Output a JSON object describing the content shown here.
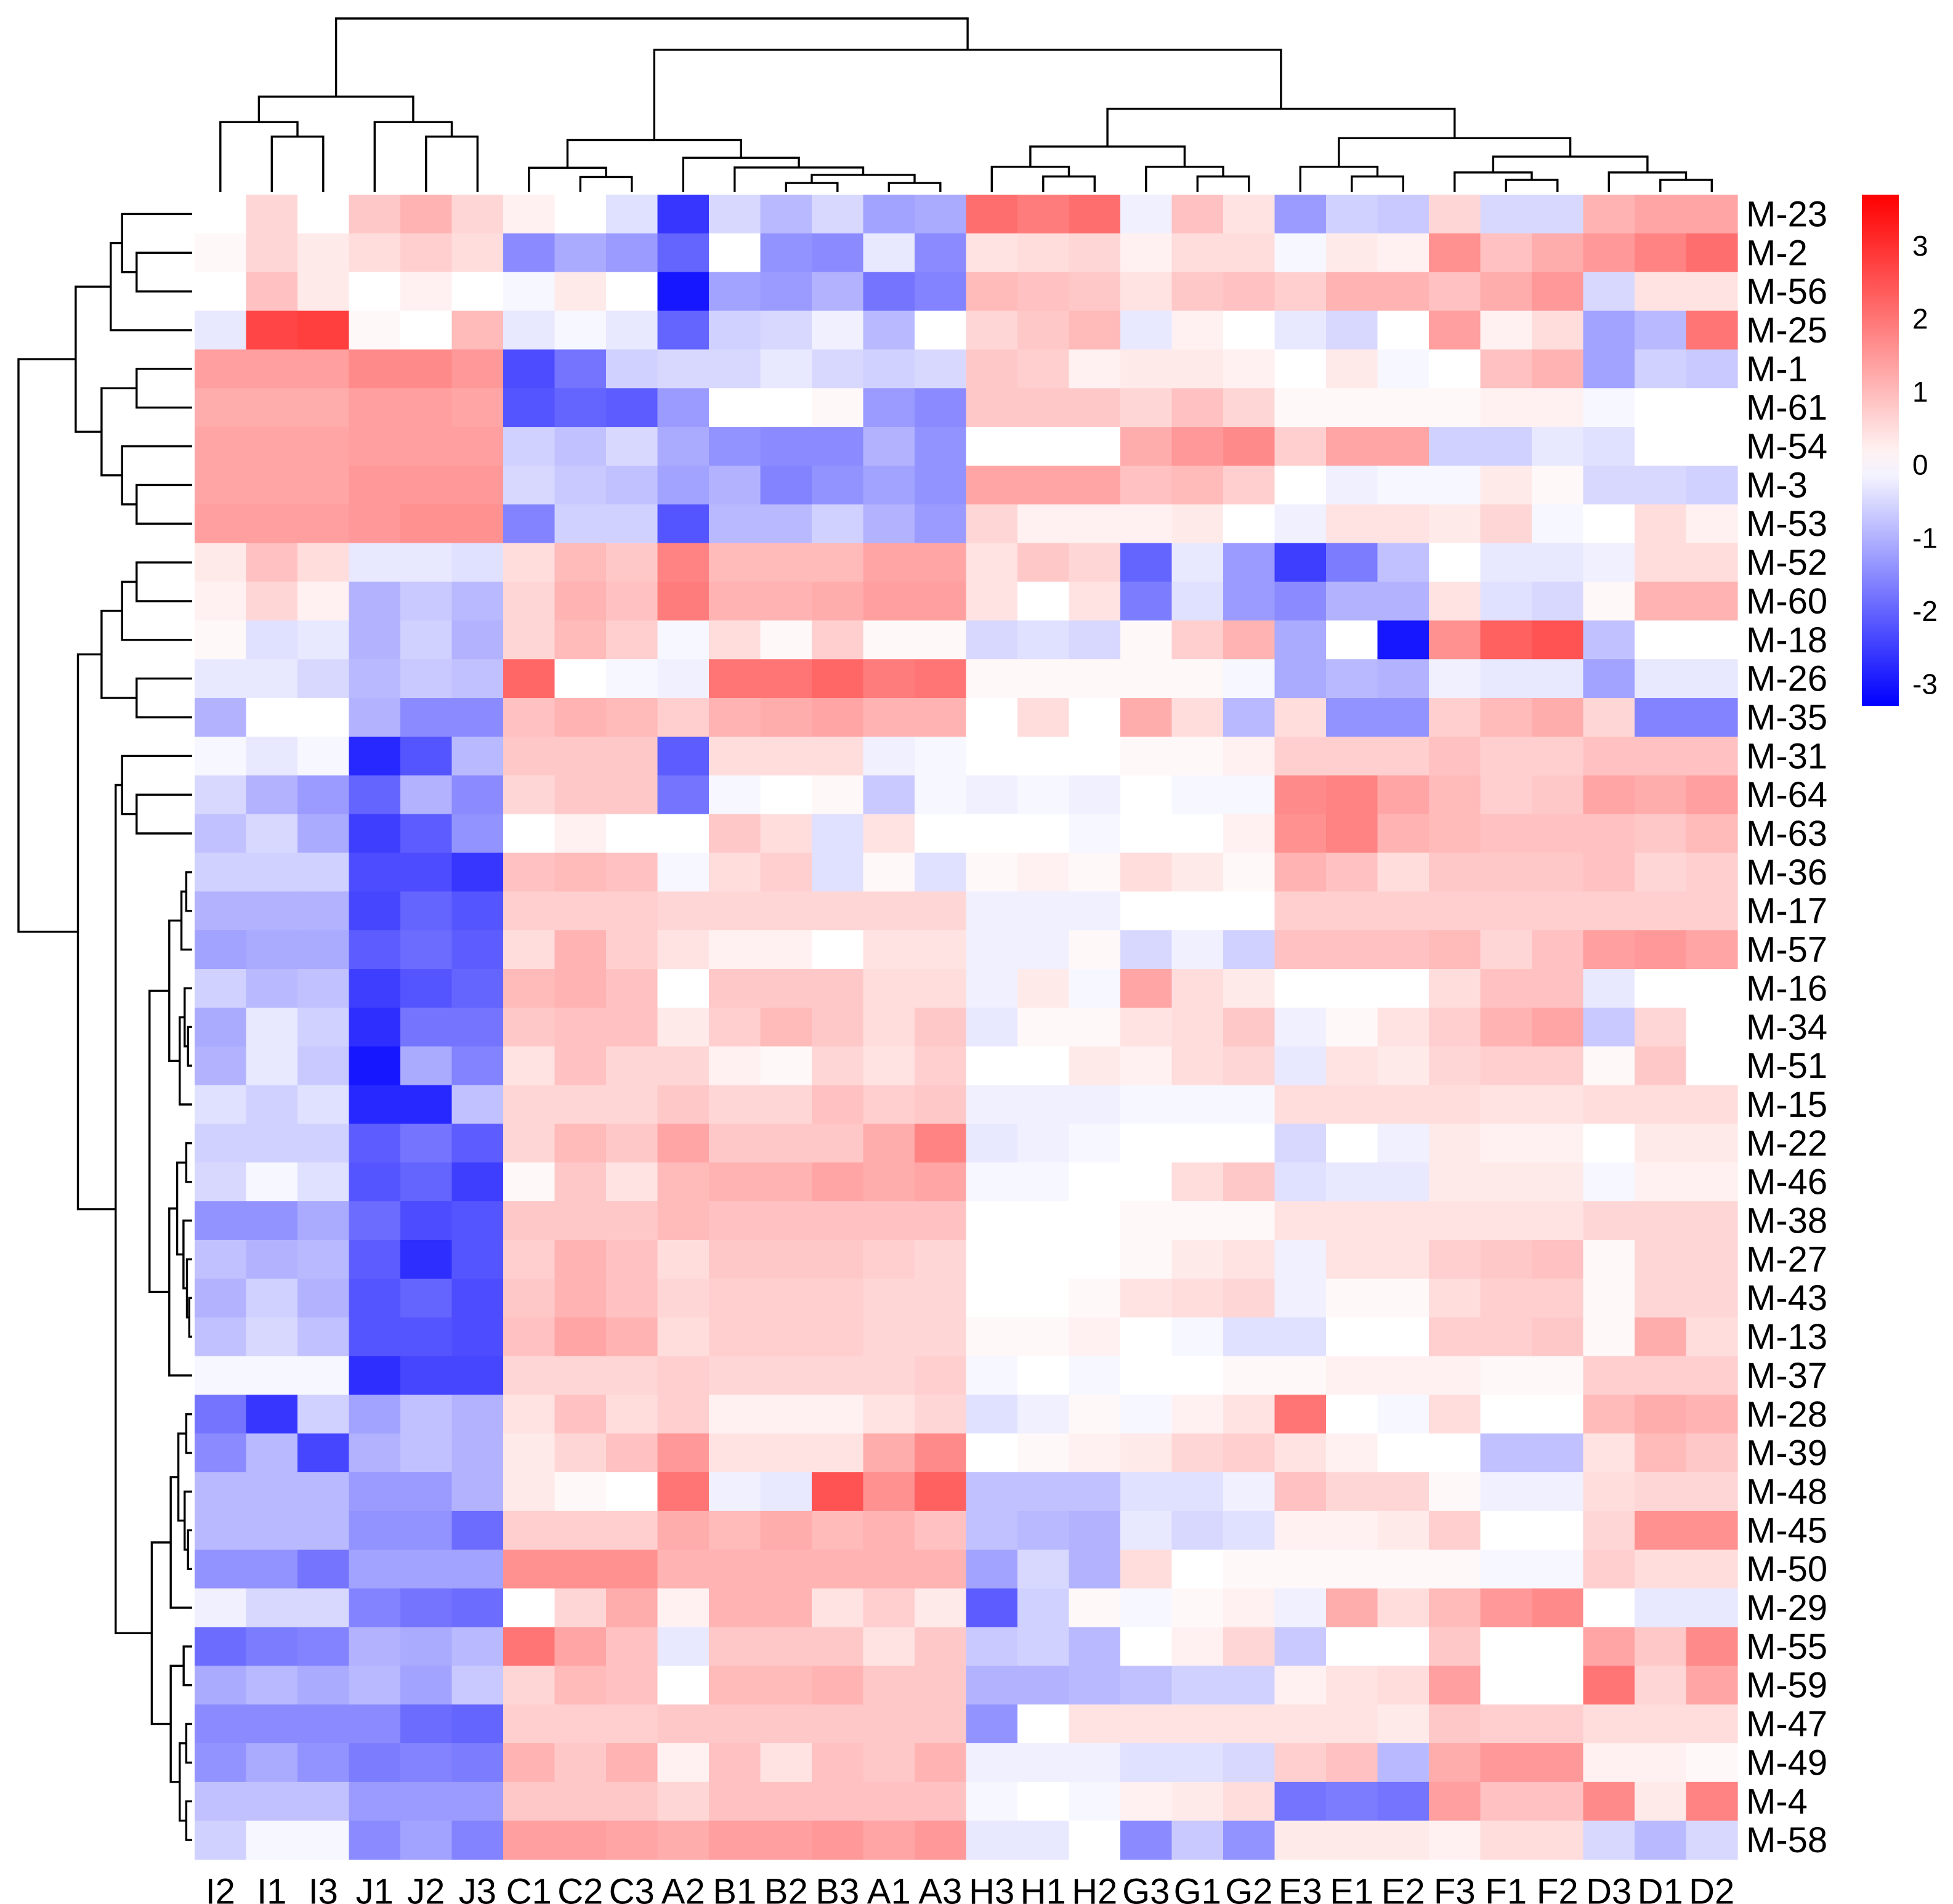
{
  "chart_data": {
    "type": "heatmap",
    "title": "",
    "columns": [
      "I2",
      "I1",
      "I3",
      "J1",
      "J2",
      "J3",
      "C1",
      "C2",
      "C3",
      "A2",
      "B1",
      "B2",
      "B3",
      "A1",
      "A3",
      "H3",
      "H1",
      "H2",
      "G3",
      "G1",
      "G2",
      "E3",
      "E1",
      "E2",
      "F3",
      "F1",
      "F2",
      "D3",
      "D1",
      "D2"
    ],
    "rows": [
      "M-23",
      "M-2",
      "M-56",
      "M-25",
      "M-1",
      "M-61",
      "M-54",
      "M-3",
      "M-53",
      "M-52",
      "M-60",
      "M-18",
      "M-26",
      "M-35",
      "M-31",
      "M-64",
      "M-63",
      "M-36",
      "M-17",
      "M-57",
      "M-16",
      "M-34",
      "M-51",
      "M-15",
      "M-22",
      "M-46",
      "M-38",
      "M-27",
      "M-43",
      "M-13",
      "M-37",
      "M-28",
      "M-39",
      "M-48",
      "M-45",
      "M-50",
      "M-29",
      "M-55",
      "M-59",
      "M-47",
      "M-49",
      "M-4",
      "M-58"
    ],
    "values": [
      [
        0.0,
        0.6,
        0.0,
        0.8,
        1.1,
        0.6,
        0.2,
        0.0,
        -0.4,
        -2.6,
        -0.5,
        -0.9,
        -0.5,
        -1.2,
        -1.1,
        2.1,
        1.9,
        2.1,
        -0.2,
        0.9,
        0.4,
        -1.3,
        -0.6,
        -0.7,
        0.6,
        -0.5,
        -0.5,
        1.1,
        1.3,
        1.3
      ],
      [
        0.1,
        0.6,
        0.3,
        0.5,
        0.7,
        0.5,
        -1.5,
        -1.1,
        -1.3,
        -2.0,
        0.0,
        -1.4,
        -1.5,
        -0.3,
        -1.5,
        0.4,
        0.5,
        0.6,
        0.2,
        0.5,
        0.5,
        -0.1,
        0.3,
        0.2,
        1.6,
        0.9,
        1.2,
        1.5,
        1.8,
        2.1
      ],
      [
        0.0,
        0.9,
        0.3,
        0.0,
        0.2,
        0.0,
        -0.1,
        0.3,
        0.0,
        -3.0,
        -1.2,
        -1.3,
        -1.0,
        -1.8,
        -1.6,
        1.0,
        0.9,
        0.8,
        0.4,
        0.8,
        0.9,
        0.7,
        1.1,
        1.1,
        0.9,
        1.2,
        1.5,
        -0.5,
        0.4,
        0.4
      ],
      [
        -0.3,
        2.7,
        2.8,
        0.1,
        0.0,
        1.0,
        -0.3,
        -0.1,
        -0.3,
        -2.0,
        -0.6,
        -0.5,
        -0.2,
        -0.9,
        0.0,
        0.6,
        0.8,
        1.0,
        -0.3,
        0.2,
        0.0,
        -0.3,
        -0.5,
        0.0,
        1.4,
        0.2,
        0.5,
        -1.2,
        -0.9,
        2.0
      ],
      [
        1.4,
        1.4,
        1.4,
        1.7,
        1.7,
        1.5,
        -2.3,
        -1.8,
        -0.6,
        -0.5,
        -0.5,
        -0.3,
        -0.5,
        -0.6,
        -0.5,
        0.8,
        0.7,
        0.2,
        0.3,
        0.3,
        0.2,
        0.0,
        0.3,
        -0.1,
        0.0,
        0.9,
        1.1,
        -1.2,
        -0.6,
        -0.7
      ],
      [
        1.2,
        1.2,
        1.2,
        1.4,
        1.4,
        1.3,
        -2.2,
        -2.0,
        -2.1,
        -1.3,
        0.0,
        0.0,
        0.1,
        -1.3,
        -1.5,
        0.8,
        0.8,
        0.8,
        0.6,
        0.9,
        0.6,
        0.1,
        0.1,
        0.1,
        0.1,
        0.2,
        0.2,
        -0.1,
        0.0,
        0.0
      ],
      [
        1.3,
        1.3,
        1.3,
        1.4,
        1.4,
        1.4,
        -0.6,
        -0.8,
        -0.5,
        -1.1,
        -1.4,
        -1.5,
        -1.5,
        -1.0,
        -1.4,
        0.0,
        0.0,
        0.0,
        1.2,
        1.5,
        1.7,
        0.7,
        1.3,
        1.3,
        -0.6,
        -0.6,
        -0.3,
        -0.4,
        0.0,
        0.0
      ],
      [
        1.3,
        1.3,
        1.3,
        1.5,
        1.5,
        1.5,
        -0.5,
        -0.7,
        -0.8,
        -1.2,
        -1.0,
        -1.6,
        -1.4,
        -1.2,
        -1.4,
        1.3,
        1.3,
        1.3,
        0.9,
        1.0,
        0.7,
        0.0,
        -0.2,
        -0.1,
        -0.1,
        0.3,
        0.1,
        -0.5,
        -0.5,
        -0.6
      ],
      [
        1.4,
        1.4,
        1.4,
        1.5,
        1.6,
        1.6,
        -1.6,
        -0.6,
        -0.6,
        -2.2,
        -0.9,
        -0.9,
        -0.6,
        -1.0,
        -1.3,
        0.6,
        0.2,
        0.2,
        0.2,
        0.3,
        0.0,
        -0.2,
        0.4,
        0.4,
        0.3,
        0.6,
        -0.1,
        0.0,
        0.5,
        0.2
      ],
      [
        0.3,
        0.9,
        0.5,
        -0.3,
        -0.3,
        -0.4,
        0.5,
        1.0,
        0.8,
        1.8,
        1.0,
        1.0,
        1.0,
        1.3,
        1.3,
        0.4,
        0.8,
        0.6,
        -2.0,
        -0.3,
        -1.3,
        -2.5,
        -1.7,
        -0.8,
        0.0,
        -0.3,
        -0.3,
        -0.2,
        0.5,
        0.5
      ],
      [
        0.2,
        0.6,
        0.2,
        -1.0,
        -0.7,
        -0.9,
        0.6,
        1.1,
        0.9,
        1.9,
        1.1,
        1.1,
        1.2,
        1.4,
        1.4,
        0.4,
        0.0,
        0.4,
        -1.7,
        -0.4,
        -1.3,
        -1.5,
        -1.0,
        -1.0,
        0.4,
        -0.4,
        -0.5,
        0.1,
        1.1,
        1.1
      ],
      [
        0.1,
        -0.4,
        -0.3,
        -1.0,
        -0.6,
        -1.0,
        0.6,
        1.0,
        0.7,
        -0.1,
        0.5,
        0.1,
        0.7,
        0.1,
        0.1,
        -0.5,
        -0.4,
        -0.5,
        0.1,
        0.7,
        1.1,
        -1.1,
        0.0,
        -3.0,
        1.6,
        2.3,
        2.5,
        -0.8,
        0.0,
        0.0
      ],
      [
        -0.3,
        -0.3,
        -0.5,
        -0.9,
        -0.7,
        -0.8,
        2.2,
        0.0,
        -0.1,
        -0.2,
        2.0,
        2.0,
        2.2,
        1.9,
        2.0,
        0.1,
        0.1,
        0.1,
        0.1,
        0.1,
        -0.1,
        -1.1,
        -0.9,
        -1.0,
        -0.2,
        -0.3,
        -0.3,
        -1.2,
        -0.3,
        -0.3
      ],
      [
        -1.0,
        0.0,
        0.0,
        -1.0,
        -1.5,
        -1.5,
        0.9,
        1.1,
        1.0,
        0.7,
        1.1,
        1.2,
        1.3,
        1.1,
        1.1,
        0.0,
        0.5,
        0.0,
        1.2,
        0.5,
        -0.9,
        0.5,
        -1.4,
        -1.4,
        0.7,
        1.0,
        1.2,
        0.6,
        -1.6,
        -1.6
      ],
      [
        -0.1,
        -0.3,
        -0.1,
        -2.8,
        -2.2,
        -0.9,
        0.8,
        0.8,
        0.8,
        -2.1,
        0.5,
        0.5,
        0.5,
        -0.2,
        -0.1,
        0.0,
        0.0,
        0.0,
        0.1,
        0.1,
        0.2,
        0.7,
        0.7,
        0.7,
        0.9,
        0.7,
        0.7,
        0.9,
        0.9,
        0.9
      ],
      [
        -0.5,
        -1.0,
        -1.3,
        -2.0,
        -1.0,
        -1.5,
        0.6,
        0.8,
        0.8,
        -1.8,
        -0.1,
        0.0,
        0.1,
        -0.7,
        -0.1,
        -0.2,
        -0.1,
        -0.2,
        0.0,
        -0.1,
        -0.1,
        1.7,
        1.8,
        1.3,
        1.0,
        0.7,
        0.8,
        1.3,
        1.2,
        1.4
      ],
      [
        -0.8,
        -0.5,
        -1.1,
        -2.5,
        -2.1,
        -1.4,
        0.0,
        0.2,
        0.0,
        0.0,
        0.8,
        0.5,
        -0.4,
        0.4,
        0.0,
        0.0,
        0.0,
        -0.1,
        0.0,
        0.0,
        0.2,
        1.6,
        1.8,
        1.1,
        1.0,
        0.9,
        0.9,
        0.9,
        0.8,
        1.0
      ],
      [
        -0.6,
        -0.6,
        -0.6,
        -2.3,
        -2.3,
        -2.6,
        0.9,
        1.0,
        0.9,
        -0.1,
        0.5,
        0.7,
        -0.4,
        0.1,
        -0.4,
        0.1,
        0.2,
        0.1,
        0.5,
        0.3,
        0.1,
        1.1,
        0.9,
        0.5,
        0.8,
        0.8,
        0.8,
        0.9,
        0.6,
        0.7
      ],
      [
        -1.0,
        -1.0,
        -1.0,
        -2.4,
        -2.0,
        -2.2,
        0.7,
        0.7,
        0.7,
        0.6,
        0.6,
        0.6,
        0.6,
        0.6,
        0.6,
        -0.2,
        -0.2,
        -0.2,
        0.0,
        0.0,
        0.0,
        0.7,
        0.7,
        0.7,
        0.7,
        0.7,
        0.7,
        0.7,
        0.7,
        0.7
      ],
      [
        -1.2,
        -1.1,
        -1.1,
        -2.1,
        -1.9,
        -2.1,
        0.5,
        1.1,
        0.7,
        0.4,
        0.2,
        0.2,
        0.0,
        0.4,
        0.4,
        -0.2,
        -0.2,
        0.1,
        -0.5,
        -0.2,
        -0.6,
        0.9,
        0.9,
        0.9,
        1.0,
        0.6,
        0.9,
        1.4,
        1.5,
        1.3
      ],
      [
        -0.6,
        -0.9,
        -0.8,
        -2.5,
        -2.2,
        -2.0,
        1.0,
        1.1,
        0.9,
        0.0,
        0.8,
        0.8,
        0.8,
        0.5,
        0.5,
        -0.2,
        0.3,
        -0.1,
        1.3,
        0.5,
        0.3,
        0.0,
        0.0,
        0.0,
        0.5,
        0.9,
        0.9,
        -0.3,
        0.0,
        0.0
      ],
      [
        -1.1,
        -0.3,
        -0.6,
        -2.7,
        -1.8,
        -1.8,
        0.8,
        0.9,
        0.9,
        0.3,
        0.7,
        1.0,
        0.8,
        0.5,
        0.8,
        -0.3,
        0.1,
        0.1,
        0.4,
        0.5,
        0.8,
        -0.2,
        0.1,
        0.4,
        0.7,
        1.1,
        1.3,
        -0.7,
        0.6,
        0.0
      ],
      [
        -1.0,
        -0.3,
        -0.7,
        -3.0,
        -1.1,
        -1.6,
        0.4,
        0.9,
        0.6,
        0.6,
        0.2,
        0.1,
        0.6,
        0.4,
        0.7,
        0.0,
        0.0,
        0.3,
        0.2,
        0.5,
        0.6,
        -0.3,
        0.4,
        0.3,
        0.6,
        0.7,
        0.7,
        0.1,
        0.8,
        0.0
      ],
      [
        -0.4,
        -0.6,
        -0.4,
        -2.8,
        -2.8,
        -0.8,
        0.6,
        0.6,
        0.6,
        0.8,
        0.6,
        0.6,
        0.9,
        0.7,
        0.8,
        -0.2,
        -0.2,
        -0.2,
        -0.1,
        -0.1,
        -0.1,
        0.5,
        0.5,
        0.5,
        0.5,
        0.4,
        0.4,
        0.5,
        0.5,
        0.5
      ],
      [
        -0.6,
        -0.6,
        -0.6,
        -2.1,
        -1.8,
        -2.1,
        0.6,
        1.0,
        0.8,
        1.3,
        0.8,
        0.8,
        0.8,
        1.2,
        1.8,
        -0.3,
        -0.2,
        -0.1,
        0.0,
        0.0,
        0.0,
        -0.5,
        0.0,
        -0.2,
        0.3,
        0.2,
        0.2,
        0.0,
        0.3,
        0.3
      ],
      [
        -0.5,
        -0.1,
        -0.4,
        -2.2,
        -2.0,
        -2.5,
        0.1,
        0.8,
        0.4,
        1.0,
        1.1,
        1.1,
        1.3,
        1.2,
        1.3,
        -0.1,
        -0.1,
        0.0,
        0.0,
        0.5,
        0.8,
        -0.4,
        -0.3,
        -0.3,
        0.3,
        0.3,
        0.3,
        -0.1,
        0.2,
        0.2
      ],
      [
        -1.4,
        -1.4,
        -1.1,
        -1.9,
        -2.3,
        -2.2,
        0.8,
        0.8,
        0.8,
        1.0,
        0.9,
        0.9,
        0.9,
        0.9,
        0.9,
        0.0,
        0.0,
        0.0,
        0.1,
        0.1,
        0.1,
        0.4,
        0.4,
        0.4,
        0.4,
        0.4,
        0.4,
        0.6,
        0.6,
        0.6
      ],
      [
        -0.8,
        -1.0,
        -0.9,
        -2.1,
        -2.7,
        -2.2,
        0.7,
        1.1,
        0.9,
        0.5,
        0.8,
        0.8,
        0.8,
        0.7,
        0.6,
        0.0,
        0.0,
        0.0,
        0.1,
        0.3,
        0.4,
        -0.2,
        0.4,
        0.4,
        0.7,
        0.8,
        0.9,
        0.1,
        0.6,
        0.6
      ],
      [
        -1.0,
        -0.6,
        -1.0,
        -2.2,
        -2.0,
        -2.3,
        0.8,
        1.1,
        0.9,
        0.6,
        0.7,
        0.7,
        0.7,
        0.6,
        0.6,
        0.0,
        0.0,
        0.1,
        0.4,
        0.5,
        0.6,
        -0.2,
        0.1,
        0.1,
        0.5,
        0.7,
        0.7,
        0.1,
        0.6,
        0.6
      ],
      [
        -0.8,
        -0.5,
        -0.8,
        -2.2,
        -2.2,
        -2.3,
        0.9,
        1.3,
        1.1,
        0.5,
        0.7,
        0.7,
        0.7,
        0.6,
        0.6,
        0.1,
        0.1,
        0.2,
        0.0,
        -0.1,
        -0.4,
        -0.4,
        0.0,
        0.0,
        0.7,
        0.7,
        0.8,
        0.1,
        1.2,
        0.5
      ],
      [
        -0.1,
        -0.1,
        -0.1,
        -2.7,
        -2.4,
        -2.4,
        0.6,
        0.6,
        0.6,
        0.7,
        0.6,
        0.6,
        0.6,
        0.6,
        0.7,
        -0.1,
        0.0,
        -0.1,
        0.0,
        0.0,
        0.1,
        0.1,
        0.2,
        0.2,
        0.2,
        0.1,
        0.1,
        0.7,
        0.7,
        0.7
      ],
      [
        -1.8,
        -2.6,
        -0.6,
        -1.2,
        -0.8,
        -1.0,
        0.4,
        0.9,
        0.5,
        0.7,
        0.2,
        0.2,
        0.2,
        0.4,
        0.6,
        -0.4,
        -0.2,
        0.1,
        -0.1,
        0.2,
        0.4,
        2.0,
        0.0,
        -0.1,
        0.5,
        0.0,
        0.0,
        1.0,
        1.2,
        1.1
      ],
      [
        -1.5,
        -0.9,
        -2.4,
        -1.0,
        -0.8,
        -1.0,
        0.3,
        0.6,
        0.9,
        1.5,
        0.4,
        0.4,
        0.4,
        1.2,
        1.7,
        0.0,
        0.1,
        0.2,
        0.3,
        0.6,
        0.7,
        0.4,
        0.2,
        0.0,
        0.0,
        -0.8,
        -0.8,
        0.4,
        1.0,
        0.8
      ],
      [
        -0.9,
        -0.9,
        -0.9,
        -1.3,
        -1.3,
        -1.0,
        0.3,
        0.1,
        0.0,
        2.0,
        -0.2,
        -0.3,
        2.5,
        1.6,
        2.3,
        -0.8,
        -0.8,
        -0.8,
        -0.4,
        -0.4,
        -0.2,
        0.9,
        0.6,
        0.6,
        0.1,
        -0.2,
        -0.2,
        0.5,
        0.6,
        0.6
      ],
      [
        -0.9,
        -0.9,
        -0.9,
        -1.4,
        -1.4,
        -1.9,
        0.7,
        0.7,
        0.7,
        1.2,
        1.0,
        1.2,
        1.0,
        1.1,
        0.9,
        -0.8,
        -0.9,
        -1.0,
        -0.3,
        -0.5,
        -0.4,
        0.2,
        0.2,
        0.3,
        0.7,
        0.0,
        0.0,
        0.6,
        1.6,
        1.6
      ],
      [
        -1.4,
        -1.4,
        -1.8,
        -1.2,
        -1.2,
        -1.2,
        1.6,
        1.6,
        1.6,
        1.1,
        1.1,
        1.1,
        1.1,
        1.1,
        1.1,
        -1.2,
        -0.5,
        -1.0,
        0.5,
        0.0,
        0.1,
        0.1,
        0.1,
        0.1,
        0.1,
        -0.1,
        -0.1,
        0.7,
        0.5,
        0.5
      ],
      [
        -0.2,
        -0.5,
        -0.5,
        -1.6,
        -1.8,
        -1.9,
        0.0,
        0.6,
        1.2,
        0.2,
        1.1,
        1.1,
        0.4,
        0.7,
        0.3,
        -2.1,
        -0.6,
        0.1,
        -0.1,
        0.1,
        0.2,
        -0.2,
        1.2,
        0.5,
        1.0,
        1.5,
        1.7,
        0.0,
        -0.3,
        -0.3
      ],
      [
        -1.9,
        -1.7,
        -1.6,
        -1.0,
        -1.1,
        -0.9,
        2.0,
        1.3,
        0.9,
        -0.3,
        0.8,
        0.8,
        0.8,
        0.4,
        0.8,
        -0.7,
        -0.6,
        -0.9,
        0.0,
        0.2,
        0.6,
        -0.7,
        0.0,
        0.0,
        0.8,
        0.0,
        0.0,
        1.3,
        0.8,
        1.7
      ],
      [
        -1.1,
        -0.9,
        -1.1,
        -0.9,
        -1.2,
        -0.7,
        0.6,
        1.0,
        0.9,
        0.0,
        1.0,
        1.0,
        1.1,
        0.8,
        0.8,
        -1.0,
        -1.0,
        -0.9,
        -0.8,
        -0.6,
        -0.6,
        0.2,
        0.4,
        0.5,
        1.4,
        0.0,
        0.0,
        2.0,
        0.6,
        1.3
      ],
      [
        -1.5,
        -1.5,
        -1.5,
        -1.5,
        -1.9,
        -2.0,
        0.7,
        0.7,
        0.7,
        0.8,
        0.8,
        0.8,
        0.8,
        0.8,
        0.8,
        -1.4,
        0.0,
        0.4,
        0.4,
        0.4,
        0.4,
        0.4,
        0.4,
        0.3,
        0.8,
        0.7,
        0.7,
        0.5,
        0.5,
        0.5
      ],
      [
        -1.4,
        -1.1,
        -1.4,
        -1.7,
        -1.6,
        -1.7,
        1.1,
        0.8,
        1.1,
        0.2,
        0.9,
        0.4,
        0.9,
        0.8,
        1.1,
        -0.2,
        -0.2,
        -0.2,
        -0.4,
        -0.4,
        -0.5,
        0.7,
        0.9,
        -0.9,
        1.2,
        1.5,
        1.5,
        0.2,
        0.2,
        0.1
      ],
      [
        -0.8,
        -0.8,
        -0.8,
        -1.3,
        -1.3,
        -1.3,
        0.8,
        0.8,
        0.8,
        0.6,
        0.9,
        0.9,
        0.9,
        0.9,
        0.9,
        -0.1,
        0.0,
        -0.1,
        0.2,
        0.3,
        0.5,
        -1.8,
        -1.7,
        -1.8,
        1.4,
        0.9,
        0.9,
        1.7,
        0.3,
        1.8
      ],
      [
        -0.6,
        -0.1,
        -0.1,
        -1.5,
        -1.2,
        -1.6,
        1.4,
        1.4,
        1.3,
        1.2,
        1.4,
        1.4,
        1.5,
        1.3,
        1.5,
        -0.3,
        -0.3,
        0.0,
        -1.5,
        -0.7,
        -1.4,
        0.3,
        0.3,
        0.3,
        0.2,
        0.5,
        0.5,
        -0.5,
        -0.9,
        -0.5
      ]
    ],
    "color_scale": {
      "min": -3.3,
      "max": 3.7,
      "low_color": "#0000ff",
      "mid_color": "#ffffff",
      "high_color": "#ff0000",
      "ticks": [
        3,
        2,
        1,
        0,
        -1,
        -2,
        -3
      ],
      "tick_labels": [
        "3",
        "2",
        "1",
        "0",
        "-1",
        "-2",
        "-3"
      ]
    },
    "legend_position": "top-right",
    "row_dendrogram": "left",
    "column_dendrogram": "top"
  }
}
